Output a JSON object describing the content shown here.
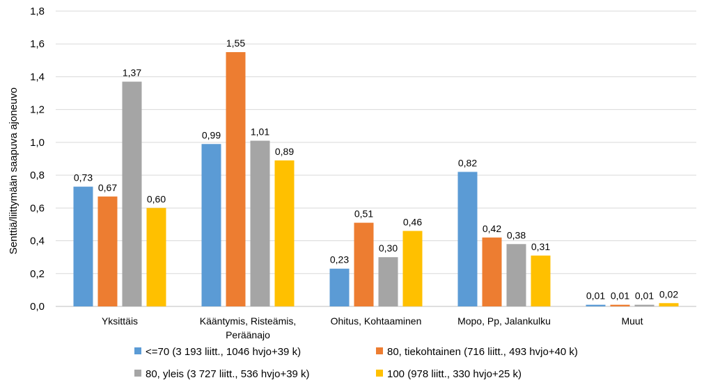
{
  "chart_data": {
    "type": "bar",
    "ylabel": "Senttiä/liittymään saapuva ajoneuvo",
    "ylim": [
      0,
      1.8
    ],
    "ytick_step": 0.2,
    "ytick_labels": [
      "0,0",
      "0,2",
      "0,4",
      "0,6",
      "0,8",
      "1,0",
      "1,2",
      "1,4",
      "1,6",
      "1,8"
    ],
    "grid": true,
    "legend_position": "bottom",
    "categories": [
      [
        "Yksittäis"
      ],
      [
        "Kääntymis, Risteämis,",
        "Peräänajo"
      ],
      [
        "Ohitus, Kohtaaminen"
      ],
      [
        "Mopo, Pp, Jalankulku"
      ],
      [
        "Muut"
      ]
    ],
    "series": [
      {
        "name": "<=70 (3 193 liitt., 1046 hvjo+39 k)",
        "color": "#5B9BD5",
        "values": [
          0.73,
          0.99,
          0.23,
          0.82,
          0.01
        ],
        "labels": [
          "0,73",
          "0,99",
          "0,23",
          "0,82",
          "0,01"
        ]
      },
      {
        "name": "80, tiekohtainen (716 liitt., 493 hvjo+40 k)",
        "color": "#ED7D31",
        "values": [
          0.67,
          1.55,
          0.51,
          0.42,
          0.01
        ],
        "labels": [
          "0,67",
          "1,55",
          "0,51",
          "0,42",
          "0,01"
        ]
      },
      {
        "name": "80, yleis (3 727 liitt., 536 hvjo+39 k)",
        "color": "#A5A5A5",
        "values": [
          1.37,
          1.01,
          0.3,
          0.38,
          0.01
        ],
        "labels": [
          "1,37",
          "1,01",
          "0,30",
          "0,38",
          "0,01"
        ]
      },
      {
        "name": "100 (978 liitt., 330 hvjo+25 k)",
        "color": "#FFC000",
        "values": [
          0.6,
          0.89,
          0.46,
          0.31,
          0.02
        ],
        "labels": [
          "0,60",
          "0,89",
          "0,46",
          "0,31",
          "0,02"
        ]
      }
    ]
  }
}
